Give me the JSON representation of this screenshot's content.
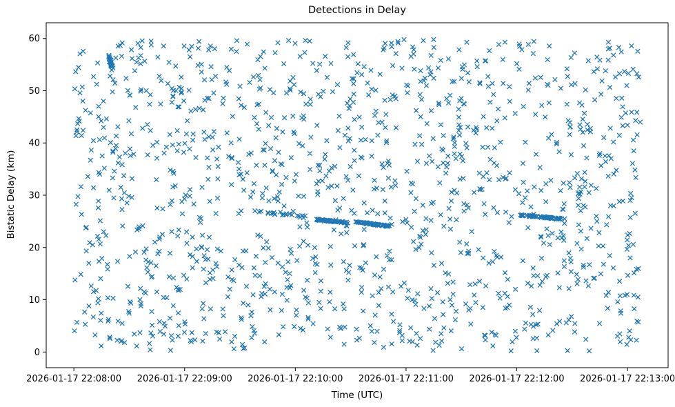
{
  "chart_data": {
    "type": "scatter",
    "title": "Detections in Delay",
    "xlabel": "Time (UTC)",
    "ylabel": "Bistatic Delay (km)",
    "marker": "x",
    "marker_color": "#1f77b4",
    "grid": false,
    "legend": null,
    "x_tick_labels": [
      "2026-01-17 22:08:00",
      "2026-01-17 22:09:00",
      "2026-01-17 22:10:00",
      "2026-01-17 22:11:00",
      "2026-01-17 22:12:00",
      "2026-01-17 22:13:00"
    ],
    "x_tick_seconds": [
      0,
      60,
      120,
      180,
      240,
      300
    ],
    "y_ticks": [
      0,
      10,
      20,
      30,
      40,
      50,
      60
    ],
    "xlim_seconds": [
      -15,
      322
    ],
    "ylim": [
      -3,
      63
    ],
    "background": {
      "count": 1350,
      "seed": 42,
      "x_range": [
        0,
        307
      ],
      "y_range": [
        0.2,
        59.8
      ]
    },
    "tracks": [
      {
        "x_start": 19,
        "x_end": 21,
        "y_start": 56.5,
        "y_end": 54.0,
        "count": 25,
        "x_jitter": 0.5,
        "y_jitter": 0.3
      },
      {
        "x_start": 100,
        "x_end": 128,
        "y_start": 26.9,
        "y_end": 25.7,
        "count": 20,
        "x_jitter": 0.6,
        "y_jitter": 0.25
      },
      {
        "x_start": 131,
        "x_end": 148,
        "y_start": 25.35,
        "y_end": 24.75,
        "count": 55,
        "x_jitter": 0.3,
        "y_jitter": 0.12
      },
      {
        "x_start": 152,
        "x_end": 171,
        "y_start": 24.9,
        "y_end": 24.1,
        "count": 65,
        "x_jitter": 0.3,
        "y_jitter": 0.12
      },
      {
        "x_start": 242,
        "x_end": 266,
        "y_start": 26.2,
        "y_end": 25.4,
        "count": 65,
        "x_jitter": 0.3,
        "y_jitter": 0.12
      }
    ]
  }
}
